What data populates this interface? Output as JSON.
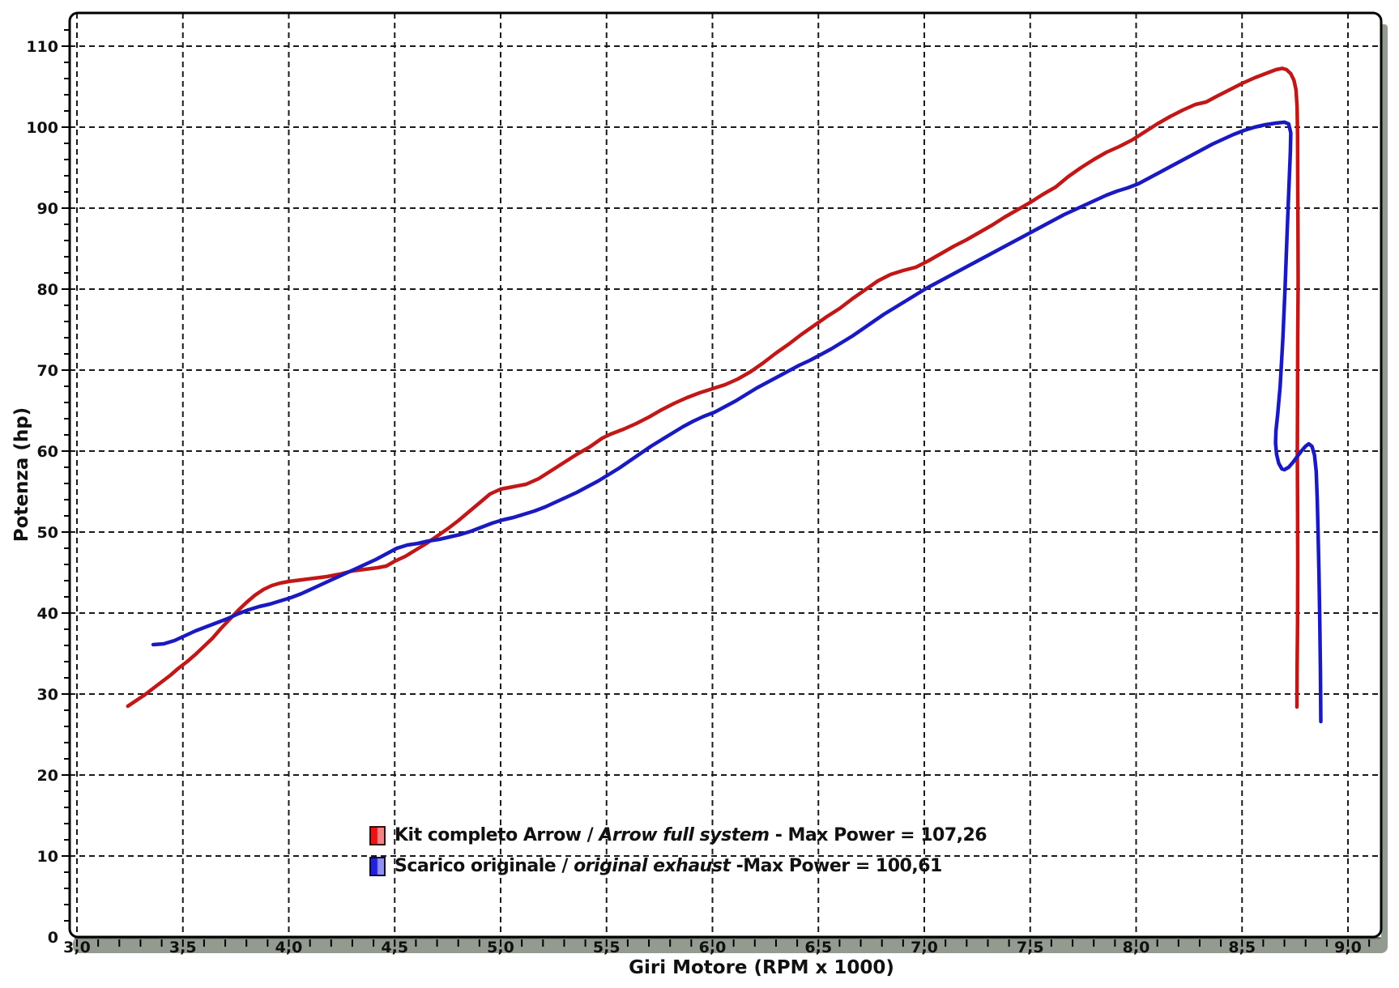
{
  "page": {
    "background": "#ffffff"
  },
  "colors": {
    "frame": "#000000",
    "grid": "#1a1a1a",
    "shadow": "#939b91",
    "shadow_edge": "#5e6459",
    "plot_bg": "#ffffff",
    "text": "#111111"
  },
  "chart_data": {
    "type": "line",
    "title": "",
    "xlabel": "Giri Motore (RPM x 1000)",
    "ylabel": "Potenza (hp)",
    "xlim": [
      2.97,
      9.16
    ],
    "ylim": [
      0,
      114
    ],
    "x_major_step": 0.5,
    "x_minor_step": 0.1,
    "y_major_step": 10,
    "y_minor_step": 2,
    "grid": "dashed",
    "legend_position": "bottom-center",
    "x_ticks": {
      "values": [
        3.0,
        3.5,
        4.0,
        4.5,
        5.0,
        5.5,
        6.0,
        6.5,
        7.0,
        7.5,
        8.0,
        8.5,
        9.0
      ],
      "labels": [
        "3,0",
        "3,5",
        "4,0",
        "4,5",
        "5,0",
        "5,5",
        "6,0",
        "6,5",
        "7,0",
        "7,5",
        "8,0",
        "8,5",
        "9,0"
      ]
    },
    "y_ticks": {
      "values": [
        0,
        10,
        20,
        30,
        40,
        50,
        60,
        70,
        80,
        90,
        100,
        110
      ],
      "labels": [
        "0",
        "10",
        "20",
        "30",
        "40",
        "50",
        "60",
        "70",
        "80",
        "90",
        "100",
        "110"
      ]
    },
    "series": [
      {
        "name": "Kit completo Arrow / Arrow full system",
        "max_power": 107.26,
        "color": "#c01818",
        "points": [
          [
            3.24,
            28.5
          ],
          [
            3.28,
            29.2
          ],
          [
            3.32,
            29.9
          ],
          [
            3.36,
            30.7
          ],
          [
            3.4,
            31.5
          ],
          [
            3.44,
            32.3
          ],
          [
            3.48,
            33.2
          ],
          [
            3.52,
            34.0
          ],
          [
            3.56,
            34.9
          ],
          [
            3.6,
            35.9
          ],
          [
            3.64,
            36.9
          ],
          [
            3.68,
            38.1
          ],
          [
            3.72,
            39.2
          ],
          [
            3.76,
            40.3
          ],
          [
            3.8,
            41.3
          ],
          [
            3.84,
            42.2
          ],
          [
            3.88,
            42.9
          ],
          [
            3.92,
            43.4
          ],
          [
            3.96,
            43.7
          ],
          [
            4.0,
            43.9
          ],
          [
            4.06,
            44.1
          ],
          [
            4.12,
            44.3
          ],
          [
            4.18,
            44.5
          ],
          [
            4.24,
            44.8
          ],
          [
            4.3,
            45.2
          ],
          [
            4.36,
            45.4
          ],
          [
            4.42,
            45.6
          ],
          [
            4.46,
            45.8
          ],
          [
            4.5,
            46.4
          ],
          [
            4.55,
            47.0
          ],
          [
            4.6,
            47.8
          ],
          [
            4.65,
            48.6
          ],
          [
            4.7,
            49.5
          ],
          [
            4.75,
            50.4
          ],
          [
            4.8,
            51.4
          ],
          [
            4.85,
            52.5
          ],
          [
            4.9,
            53.6
          ],
          [
            4.95,
            54.7
          ],
          [
            5.0,
            55.3
          ],
          [
            5.06,
            55.6
          ],
          [
            5.12,
            55.9
          ],
          [
            5.18,
            56.6
          ],
          [
            5.24,
            57.6
          ],
          [
            5.3,
            58.6
          ],
          [
            5.36,
            59.6
          ],
          [
            5.42,
            60.5
          ],
          [
            5.48,
            61.6
          ],
          [
            5.52,
            62.1
          ],
          [
            5.58,
            62.7
          ],
          [
            5.64,
            63.4
          ],
          [
            5.7,
            64.2
          ],
          [
            5.76,
            65.1
          ],
          [
            5.82,
            65.9
          ],
          [
            5.88,
            66.6
          ],
          [
            5.94,
            67.2
          ],
          [
            6.0,
            67.7
          ],
          [
            6.06,
            68.2
          ],
          [
            6.12,
            68.9
          ],
          [
            6.18,
            69.8
          ],
          [
            6.24,
            70.9
          ],
          [
            6.3,
            72.1
          ],
          [
            6.36,
            73.2
          ],
          [
            6.42,
            74.4
          ],
          [
            6.48,
            75.5
          ],
          [
            6.54,
            76.6
          ],
          [
            6.6,
            77.6
          ],
          [
            6.66,
            78.8
          ],
          [
            6.72,
            79.9
          ],
          [
            6.78,
            81.0
          ],
          [
            6.84,
            81.8
          ],
          [
            6.9,
            82.3
          ],
          [
            6.96,
            82.7
          ],
          [
            7.02,
            83.5
          ],
          [
            7.08,
            84.4
          ],
          [
            7.14,
            85.3
          ],
          [
            7.2,
            86.1
          ],
          [
            7.26,
            87.0
          ],
          [
            7.32,
            87.9
          ],
          [
            7.38,
            88.9
          ],
          [
            7.44,
            89.8
          ],
          [
            7.5,
            90.7
          ],
          [
            7.56,
            91.7
          ],
          [
            7.62,
            92.6
          ],
          [
            7.68,
            93.9
          ],
          [
            7.74,
            95.0
          ],
          [
            7.8,
            96.0
          ],
          [
            7.86,
            96.9
          ],
          [
            7.92,
            97.6
          ],
          [
            7.98,
            98.4
          ],
          [
            8.04,
            99.4
          ],
          [
            8.1,
            100.4
          ],
          [
            8.16,
            101.3
          ],
          [
            8.22,
            102.1
          ],
          [
            8.28,
            102.8
          ],
          [
            8.33,
            103.1
          ],
          [
            8.38,
            103.8
          ],
          [
            8.44,
            104.6
          ],
          [
            8.5,
            105.4
          ],
          [
            8.56,
            106.1
          ],
          [
            8.62,
            106.7
          ],
          [
            8.66,
            107.1
          ],
          [
            8.69,
            107.26
          ],
          [
            8.71,
            107.1
          ],
          [
            8.73,
            106.6
          ],
          [
            8.745,
            105.8
          ],
          [
            8.755,
            104.6
          ],
          [
            8.76,
            102.5
          ],
          [
            8.762,
            99.0
          ],
          [
            8.763,
            93.0
          ],
          [
            8.764,
            87.0
          ],
          [
            8.765,
            81.0
          ],
          [
            8.763,
            74.0
          ],
          [
            8.762,
            67.0
          ],
          [
            8.761,
            60.0
          ],
          [
            8.762,
            53.0
          ],
          [
            8.763,
            46.0
          ],
          [
            8.762,
            39.0
          ],
          [
            8.76,
            33.0
          ],
          [
            8.759,
            28.4
          ]
        ]
      },
      {
        "name": "Scarico originale / original exhaust",
        "max_power": 100.61,
        "color": "#1a1ac0",
        "points": [
          [
            3.36,
            36.1
          ],
          [
            3.41,
            36.2
          ],
          [
            3.46,
            36.6
          ],
          [
            3.51,
            37.2
          ],
          [
            3.56,
            37.8
          ],
          [
            3.61,
            38.3
          ],
          [
            3.66,
            38.8
          ],
          [
            3.71,
            39.3
          ],
          [
            3.76,
            39.9
          ],
          [
            3.81,
            40.4
          ],
          [
            3.86,
            40.8
          ],
          [
            3.91,
            41.1
          ],
          [
            3.96,
            41.5
          ],
          [
            4.01,
            41.9
          ],
          [
            4.06,
            42.4
          ],
          [
            4.11,
            43.0
          ],
          [
            4.16,
            43.6
          ],
          [
            4.21,
            44.2
          ],
          [
            4.26,
            44.8
          ],
          [
            4.31,
            45.4
          ],
          [
            4.36,
            46.0
          ],
          [
            4.41,
            46.6
          ],
          [
            4.46,
            47.3
          ],
          [
            4.51,
            48.0
          ],
          [
            4.56,
            48.4
          ],
          [
            4.61,
            48.6
          ],
          [
            4.66,
            48.9
          ],
          [
            4.71,
            49.1
          ],
          [
            4.76,
            49.4
          ],
          [
            4.81,
            49.7
          ],
          [
            4.86,
            50.1
          ],
          [
            4.91,
            50.6
          ],
          [
            4.96,
            51.1
          ],
          [
            5.01,
            51.5
          ],
          [
            5.06,
            51.8
          ],
          [
            5.11,
            52.2
          ],
          [
            5.16,
            52.6
          ],
          [
            5.21,
            53.1
          ],
          [
            5.26,
            53.7
          ],
          [
            5.31,
            54.3
          ],
          [
            5.36,
            54.9
          ],
          [
            5.41,
            55.6
          ],
          [
            5.46,
            56.3
          ],
          [
            5.51,
            57.1
          ],
          [
            5.56,
            57.9
          ],
          [
            5.61,
            58.8
          ],
          [
            5.66,
            59.7
          ],
          [
            5.71,
            60.6
          ],
          [
            5.76,
            61.4
          ],
          [
            5.81,
            62.2
          ],
          [
            5.86,
            63.0
          ],
          [
            5.91,
            63.7
          ],
          [
            5.96,
            64.3
          ],
          [
            6.01,
            64.8
          ],
          [
            6.06,
            65.5
          ],
          [
            6.11,
            66.2
          ],
          [
            6.16,
            67.0
          ],
          [
            6.21,
            67.8
          ],
          [
            6.26,
            68.5
          ],
          [
            6.31,
            69.2
          ],
          [
            6.36,
            69.9
          ],
          [
            6.41,
            70.6
          ],
          [
            6.46,
            71.2
          ],
          [
            6.51,
            71.9
          ],
          [
            6.56,
            72.6
          ],
          [
            6.61,
            73.4
          ],
          [
            6.66,
            74.2
          ],
          [
            6.71,
            75.1
          ],
          [
            6.76,
            76.0
          ],
          [
            6.81,
            76.9
          ],
          [
            6.86,
            77.7
          ],
          [
            6.91,
            78.5
          ],
          [
            6.96,
            79.3
          ],
          [
            7.01,
            80.1
          ],
          [
            7.06,
            80.8
          ],
          [
            7.11,
            81.5
          ],
          [
            7.16,
            82.2
          ],
          [
            7.21,
            82.9
          ],
          [
            7.26,
            83.6
          ],
          [
            7.31,
            84.3
          ],
          [
            7.36,
            85.0
          ],
          [
            7.41,
            85.7
          ],
          [
            7.46,
            86.4
          ],
          [
            7.51,
            87.1
          ],
          [
            7.56,
            87.8
          ],
          [
            7.61,
            88.5
          ],
          [
            7.66,
            89.2
          ],
          [
            7.71,
            89.8
          ],
          [
            7.76,
            90.4
          ],
          [
            7.81,
            91.0
          ],
          [
            7.86,
            91.6
          ],
          [
            7.91,
            92.1
          ],
          [
            7.96,
            92.5
          ],
          [
            8.01,
            93.0
          ],
          [
            8.06,
            93.7
          ],
          [
            8.11,
            94.4
          ],
          [
            8.16,
            95.1
          ],
          [
            8.21,
            95.8
          ],
          [
            8.26,
            96.5
          ],
          [
            8.31,
            97.2
          ],
          [
            8.36,
            97.9
          ],
          [
            8.41,
            98.5
          ],
          [
            8.46,
            99.1
          ],
          [
            8.51,
            99.6
          ],
          [
            8.56,
            100.0
          ],
          [
            8.61,
            100.3
          ],
          [
            8.66,
            100.5
          ],
          [
            8.7,
            100.61
          ],
          [
            8.72,
            100.4
          ],
          [
            8.73,
            99.3
          ],
          [
            8.728,
            97.0
          ],
          [
            8.722,
            93.0
          ],
          [
            8.713,
            87.0
          ],
          [
            8.703,
            80.0
          ],
          [
            8.693,
            74.0
          ],
          [
            8.68,
            68.0
          ],
          [
            8.668,
            64.5
          ],
          [
            8.66,
            62.5
          ],
          [
            8.658,
            61.0
          ],
          [
            8.663,
            59.6
          ],
          [
            8.673,
            58.5
          ],
          [
            8.688,
            57.8
          ],
          [
            8.7,
            57.7
          ],
          [
            8.72,
            58.0
          ],
          [
            8.74,
            58.6
          ],
          [
            8.76,
            59.3
          ],
          [
            8.78,
            60.0
          ],
          [
            8.8,
            60.6
          ],
          [
            8.815,
            60.9
          ],
          [
            8.83,
            60.6
          ],
          [
            8.842,
            59.5
          ],
          [
            8.85,
            57.5
          ],
          [
            8.855,
            54.0
          ],
          [
            8.859,
            50.0
          ],
          [
            8.863,
            45.0
          ],
          [
            8.867,
            39.0
          ],
          [
            8.87,
            33.0
          ],
          [
            8.872,
            26.6
          ]
        ]
      }
    ],
    "legend": {
      "items": [
        {
          "text_plain": "Kit completo Arrow / ",
          "text_italic": "Arrow full system",
          "text_suffix": " - Max Power = 107,26",
          "swatch_left": "#ee1212",
          "swatch_right": "#f28484",
          "swatch_border": "#3a0c0c"
        },
        {
          "text_plain": "Scarico originale / ",
          "text_italic": "original exhaust",
          "text_suffix": " -Max Power = 100,61",
          "swatch_left": "#2121e0",
          "swatch_right": "#9090f0",
          "swatch_border": "#0c0c3a"
        }
      ]
    }
  }
}
